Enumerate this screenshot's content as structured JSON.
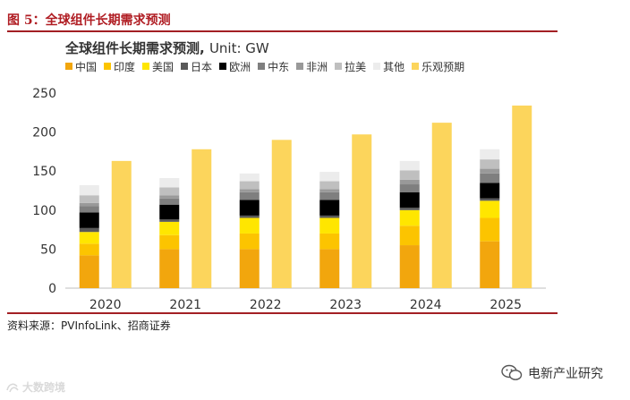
{
  "figure_label": "图 5：全球组件长期需求预测",
  "chart_data": {
    "type": "bar",
    "title": "全球组件长期需求预测",
    "unit_label": "Unit: GW",
    "categories": [
      "2020",
      "2021",
      "2022",
      "2023",
      "2024",
      "2025"
    ],
    "ylim": [
      0,
      250
    ],
    "yticks": [
      0,
      50,
      100,
      150,
      200,
      250
    ],
    "grid": false,
    "legend_position": "top",
    "series": [
      {
        "name": "中国",
        "color": "#f2a60d",
        "values": [
          42,
          50,
          50,
          50,
          55,
          60
        ]
      },
      {
        "name": "印度",
        "color": "#fcc400",
        "values": [
          15,
          18,
          20,
          20,
          25,
          30
        ]
      },
      {
        "name": "美国",
        "color": "#ffe600",
        "values": [
          15,
          17,
          20,
          20,
          20,
          22
        ]
      },
      {
        "name": "日本",
        "color": "#595959",
        "values": [
          5,
          3,
          3,
          3,
          3,
          3
        ]
      },
      {
        "name": "欧洲",
        "color": "#000000",
        "values": [
          20,
          19,
          20,
          20,
          20,
          20
        ]
      },
      {
        "name": "中东",
        "color": "#7f7f7f",
        "values": [
          8,
          8,
          10,
          10,
          10,
          12
        ]
      },
      {
        "name": "非洲",
        "color": "#999999",
        "values": [
          4,
          4,
          4,
          4,
          6,
          6
        ]
      },
      {
        "name": "拉美",
        "color": "#bfbfbf",
        "values": [
          10,
          10,
          10,
          10,
          12,
          12
        ]
      },
      {
        "name": "其他",
        "color": "#ececec",
        "values": [
          13,
          12,
          10,
          12,
          12,
          13
        ]
      }
    ],
    "stack_count": 9,
    "optimistic_series": {
      "name": "乐观预期",
      "color": "#fcd55c",
      "values": [
        163,
        178,
        190,
        197,
        212,
        234
      ]
    }
  },
  "source": "资料来源：PVInfoLink、招商证券",
  "watermark_right": "电新产业研究",
  "watermark_left": "大数跨境"
}
